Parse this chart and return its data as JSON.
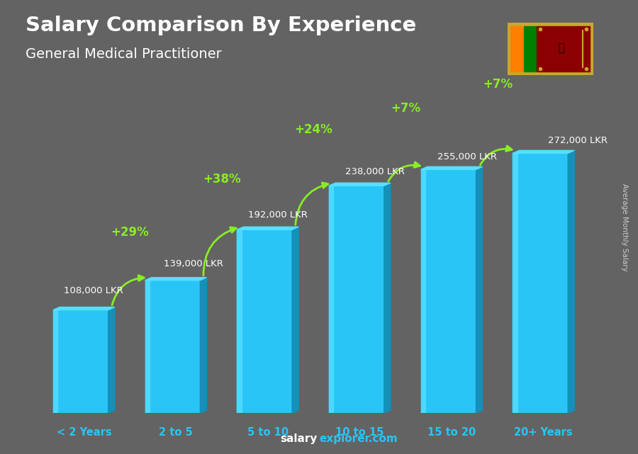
{
  "title_line1": "Salary Comparison By Experience",
  "title_line2": "General Medical Practitioner",
  "categories": [
    "< 2 Years",
    "2 to 5",
    "5 to 10",
    "10 to 15",
    "15 to 20",
    "20+ Years"
  ],
  "values": [
    108000,
    139000,
    192000,
    238000,
    255000,
    272000
  ],
  "labels": [
    "108,000 LKR",
    "139,000 LKR",
    "192,000 LKR",
    "238,000 LKR",
    "255,000 LKR",
    "272,000 LKR"
  ],
  "pct_changes": [
    "+29%",
    "+38%",
    "+24%",
    "+7%",
    "+7%"
  ],
  "bar_color_face": "#29c5f6",
  "bar_color_left": "#4dd8ff",
  "bar_color_right": "#1490bb",
  "bar_color_top": "#55e0ff",
  "background_color": "#636363",
  "ylabel": "Average Monthly Salary",
  "footer_salary": "salary",
  "footer_explorer": "explorer.com",
  "title_color": "#ffffff",
  "label_color": "#ffffff",
  "pct_color": "#88ee22",
  "xlabel_color": "#29c5f6",
  "footer_color1": "#ffffff",
  "footer_color2": "#29c5f6",
  "ylabel_color": "#cccccc"
}
